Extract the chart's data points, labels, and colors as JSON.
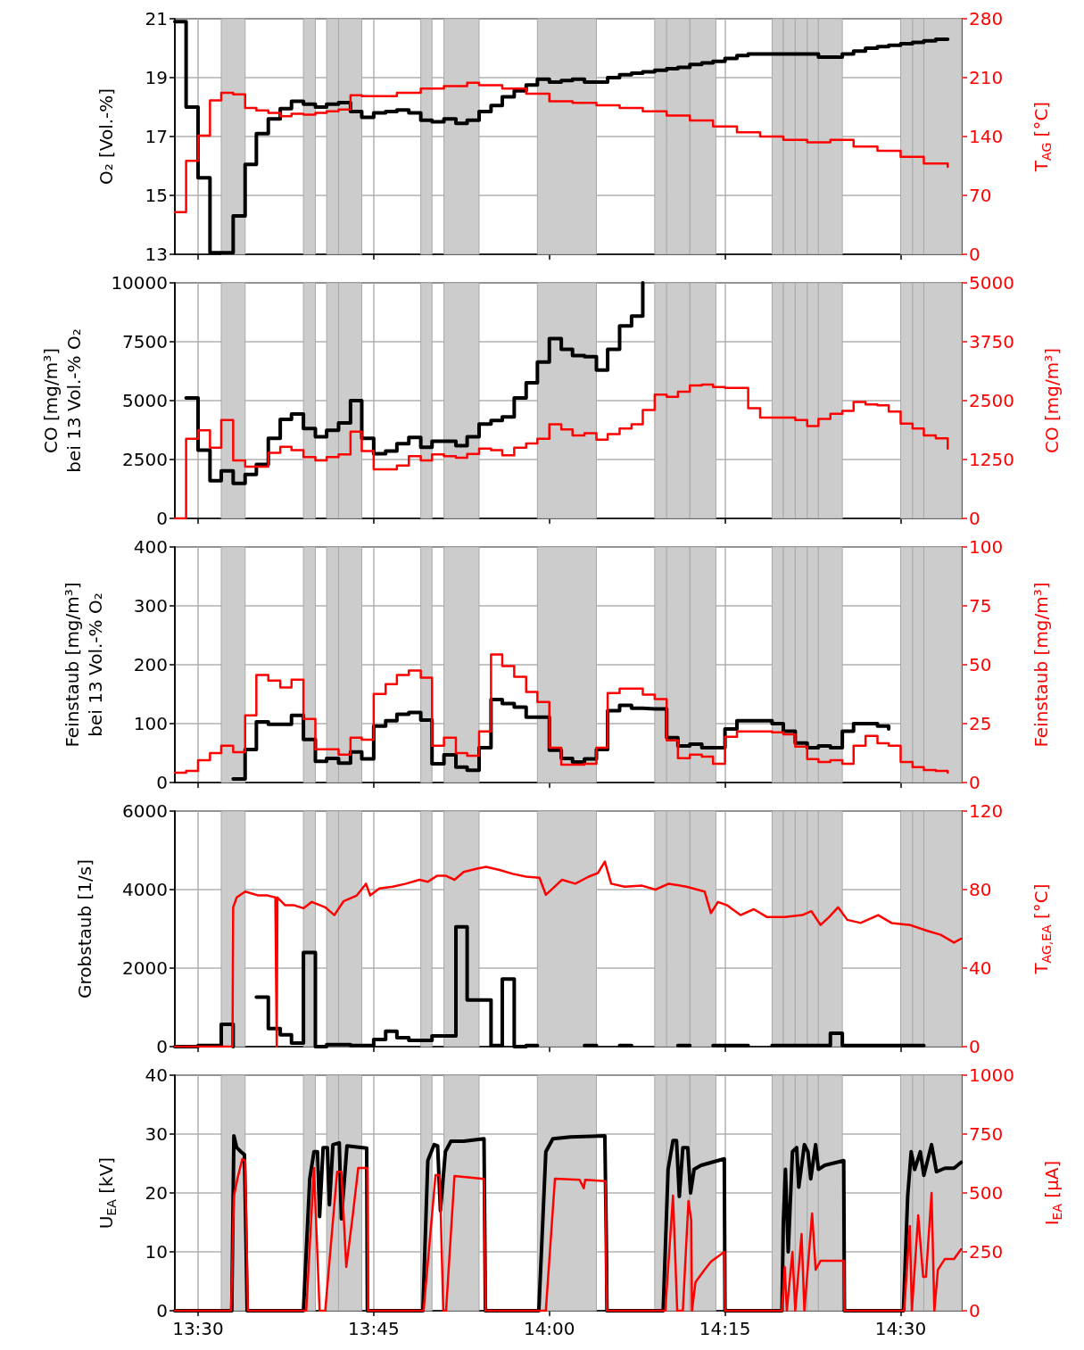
{
  "chart_data": [
    {
      "type": "step",
      "ylabel": "O₂ [Vol.-%]",
      "y2label": "T$_{AG}$ [°C]",
      "x": [
        13.467,
        13.483,
        13.5,
        13.517,
        13.533,
        13.55,
        13.567,
        13.583,
        13.6,
        13.617,
        13.633,
        13.65,
        13.667,
        13.683,
        13.7,
        13.717,
        13.733,
        13.75,
        13.767,
        13.783,
        13.8,
        13.817,
        13.833,
        13.85,
        13.867,
        13.883,
        13.9,
        13.917,
        13.933,
        13.95,
        13.967,
        13.983,
        14,
        14.017,
        14.033,
        14.05,
        14.067,
        14.083,
        14.1,
        14.117,
        14.133,
        14.15,
        14.167,
        14.183,
        14.2,
        14.217,
        14.233,
        14.25,
        14.267,
        14.283,
        14.3,
        14.317,
        14.333,
        14.35,
        14.367,
        14.383,
        14.4,
        14.417,
        14.433,
        14.45,
        14.467,
        14.483,
        14.5,
        14.517,
        14.533,
        14.55,
        14.567
      ],
      "series": [
        {
          "color": "#000000",
          "values": [
            20.9,
            18.0,
            15.6,
            13.05,
            13.05,
            14.3,
            16.05,
            17.1,
            17.6,
            17.95,
            18.2,
            18.1,
            18.0,
            18.1,
            18.15,
            17.85,
            17.65,
            17.8,
            17.85,
            17.9,
            17.8,
            17.55,
            17.5,
            17.6,
            17.45,
            17.55,
            17.85,
            18.05,
            18.35,
            18.55,
            18.75,
            18.95,
            18.85,
            18.9,
            18.95,
            18.85,
            18.85,
            19.0,
            19.1,
            19.15,
            19.2,
            19.25,
            19.3,
            19.35,
            19.45,
            19.5,
            19.55,
            19.65,
            19.75,
            19.8,
            19.8,
            19.8,
            19.8,
            19.8,
            19.8,
            19.7,
            19.7,
            19.8,
            19.9,
            20.0,
            20.05,
            20.1,
            20.15,
            20.2,
            20.25,
            20.3,
            20.3
          ]
        },
        {
          "color": "#ff0000",
          "axis": "y2",
          "values": [
            50,
            111,
            141,
            183,
            192,
            190,
            174,
            171,
            168,
            164,
            167,
            166,
            168,
            170,
            172,
            189,
            188,
            188,
            188,
            192,
            192,
            197,
            197,
            200,
            200,
            204,
            201,
            201,
            197,
            197,
            191,
            191,
            182,
            182,
            180,
            180,
            177,
            177,
            174,
            174,
            170,
            170,
            165,
            165,
            159,
            159,
            152,
            152,
            145,
            145,
            140,
            140,
            136,
            136,
            133,
            133,
            136,
            136,
            128,
            128,
            123,
            123,
            116,
            116,
            108,
            108,
            104
          ]
        }
      ],
      "xlim": [
        13.467,
        14.587
      ],
      "xticks": [
        {
          "value": 13.5,
          "label": null
        },
        {
          "value": 13.75,
          "label": null
        },
        {
          "value": 14,
          "label": null
        },
        {
          "value": 14.25,
          "label": null
        },
        {
          "value": 14.5,
          "label": null
        }
      ],
      "ylim": [
        13,
        21
      ],
      "yticks": [
        13,
        15,
        17,
        19,
        21
      ],
      "y2lim": [
        0,
        280
      ],
      "y2ticks": [
        0,
        70,
        140,
        210,
        280
      ],
      "grid": true,
      "tick_labels": "y",
      "bands": [
        {
          "axis": "x",
          "from": 13.533,
          "to": 13.567,
          "color": "#cccccc"
        },
        {
          "axis": "x",
          "from": 13.65,
          "to": 13.667,
          "color": "#cccccc"
        },
        {
          "axis": "x",
          "from": 13.683,
          "to": 13.7,
          "color": "#cccccc"
        },
        {
          "axis": "x",
          "from": 13.7,
          "to": 13.733,
          "color": "#cccccc"
        },
        {
          "axis": "x",
          "from": 13.817,
          "to": 13.833,
          "color": "#cccccc"
        },
        {
          "axis": "x",
          "from": 13.85,
          "to": 13.9,
          "color": "#cccccc"
        },
        {
          "axis": "x",
          "from": 13.983,
          "to": 14.067,
          "color": "#cccccc"
        },
        {
          "axis": "x",
          "from": 14.15,
          "to": 14.167,
          "color": "#cccccc"
        },
        {
          "axis": "x",
          "from": 14.167,
          "to": 14.2,
          "color": "#cccccc"
        },
        {
          "axis": "x",
          "from": 14.2,
          "to": 14.237,
          "color": "#cccccc"
        },
        {
          "axis": "x",
          "from": 14.317,
          "to": 14.333,
          "color": "#cccccc"
        },
        {
          "axis": "x",
          "from": 14.333,
          "to": 14.35,
          "color": "#cccccc"
        },
        {
          "axis": "x",
          "from": 14.35,
          "to": 14.367,
          "color": "#cccccc"
        },
        {
          "axis": "x",
          "from": 14.367,
          "to": 14.383,
          "color": "#cccccc"
        },
        {
          "axis": "x",
          "from": 14.383,
          "to": 14.417,
          "color": "#cccccc"
        },
        {
          "axis": "x",
          "from": 14.5,
          "to": 14.517,
          "color": "#cccccc"
        },
        {
          "axis": "x",
          "from": 14.517,
          "to": 14.533,
          "color": "#cccccc"
        },
        {
          "axis": "x",
          "from": 14.533,
          "to": 14.587,
          "color": "#cccccc"
        }
      ]
    },
    {
      "type": "step",
      "ylabel": "CO [mg/m³]\nbei 13 Vol.-% O₂",
      "y2label": "CO [mg/m³]",
      "x": [
        13.467,
        13.483,
        13.5,
        13.517,
        13.533,
        13.55,
        13.567,
        13.583,
        13.6,
        13.617,
        13.633,
        13.65,
        13.667,
        13.683,
        13.7,
        13.717,
        13.733,
        13.75,
        13.767,
        13.783,
        13.8,
        13.817,
        13.833,
        13.85,
        13.867,
        13.883,
        13.9,
        13.917,
        13.933,
        13.95,
        13.967,
        13.983,
        14,
        14.017,
        14.033,
        14.05,
        14.067,
        14.083,
        14.1,
        14.117,
        14.133,
        14.15,
        14.167,
        14.183,
        14.2,
        14.217,
        14.233,
        14.25,
        14.267,
        14.283,
        14.3,
        14.317,
        14.333,
        14.35,
        14.367,
        14.383,
        14.4,
        14.417,
        14.433,
        14.45,
        14.467,
        14.483,
        14.5,
        14.517,
        14.533,
        14.55,
        14.567
      ],
      "series": [
        {
          "color": "#000000",
          "values": [
            null,
            5110,
            2900,
            1600,
            2020,
            1490,
            1870,
            2290,
            3400,
            4200,
            4430,
            3820,
            3470,
            3740,
            4050,
            5000,
            3400,
            2750,
            2860,
            3170,
            3440,
            3020,
            3280,
            3280,
            3090,
            3470,
            4010,
            4160,
            4310,
            5110,
            5760,
            6640,
            7630,
            7180,
            6910,
            6870,
            6300,
            7180,
            8170,
            8590,
            10000,
            null,
            null,
            null,
            null,
            null,
            null,
            null,
            null,
            null,
            null,
            null,
            null,
            null,
            null,
            null,
            null,
            null,
            null,
            null,
            null,
            null,
            null,
            null,
            null,
            null,
            null
          ]
        },
        {
          "color": "#ff0000",
          "axis": "y2",
          "values": [
            0,
            1690,
            1870,
            1500,
            2090,
            1230,
            1100,
            1100,
            1390,
            1520,
            1450,
            1300,
            1230,
            1300,
            1360,
            1840,
            1430,
            1040,
            1040,
            1120,
            1320,
            1230,
            1360,
            1320,
            1290,
            1370,
            1480,
            1450,
            1340,
            1500,
            1590,
            1690,
            2000,
            1890,
            1760,
            1810,
            1670,
            1790,
            1910,
            2000,
            2300,
            2630,
            2580,
            2690,
            2820,
            2840,
            2790,
            2770,
            2770,
            2340,
            2140,
            2140,
            2140,
            2090,
            1960,
            2110,
            2220,
            2280,
            2470,
            2420,
            2400,
            2270,
            2010,
            1910,
            1760,
            1700,
            1480
          ]
        }
      ],
      "xlim": [
        13.467,
        14.587
      ],
      "xticks": [
        {
          "value": 13.5,
          "label": null
        },
        {
          "value": 13.75,
          "label": null
        },
        {
          "value": 14,
          "label": null
        },
        {
          "value": 14.25,
          "label": null
        },
        {
          "value": 14.5,
          "label": null
        }
      ],
      "ylim": [
        0,
        10000
      ],
      "yticks": [
        0,
        2500,
        5000,
        7500,
        10000
      ],
      "y2lim": [
        0,
        5000
      ],
      "y2ticks": [
        0,
        1250,
        2500,
        3750,
        5000
      ],
      "grid": true,
      "tick_labels": "y",
      "bands": [
        {
          "axis": "x",
          "from": 13.533,
          "to": 13.567,
          "color": "#cccccc"
        },
        {
          "axis": "x",
          "from": 13.65,
          "to": 13.667,
          "color": "#cccccc"
        },
        {
          "axis": "x",
          "from": 13.683,
          "to": 13.7,
          "color": "#cccccc"
        },
        {
          "axis": "x",
          "from": 13.7,
          "to": 13.733,
          "color": "#cccccc"
        },
        {
          "axis": "x",
          "from": 13.817,
          "to": 13.833,
          "color": "#cccccc"
        },
        {
          "axis": "x",
          "from": 13.85,
          "to": 13.9,
          "color": "#cccccc"
        },
        {
          "axis": "x",
          "from": 13.983,
          "to": 14.067,
          "color": "#cccccc"
        },
        {
          "axis": "x",
          "from": 14.15,
          "to": 14.167,
          "color": "#cccccc"
        },
        {
          "axis": "x",
          "from": 14.167,
          "to": 14.2,
          "color": "#cccccc"
        },
        {
          "axis": "x",
          "from": 14.2,
          "to": 14.237,
          "color": "#cccccc"
        },
        {
          "axis": "x",
          "from": 14.317,
          "to": 14.333,
          "color": "#cccccc"
        },
        {
          "axis": "x",
          "from": 14.333,
          "to": 14.35,
          "color": "#cccccc"
        },
        {
          "axis": "x",
          "from": 14.35,
          "to": 14.367,
          "color": "#cccccc"
        },
        {
          "axis": "x",
          "from": 14.367,
          "to": 14.383,
          "color": "#cccccc"
        },
        {
          "axis": "x",
          "from": 14.383,
          "to": 14.417,
          "color": "#cccccc"
        },
        {
          "axis": "x",
          "from": 14.5,
          "to": 14.517,
          "color": "#cccccc"
        },
        {
          "axis": "x",
          "from": 14.517,
          "to": 14.533,
          "color": "#cccccc"
        },
        {
          "axis": "x",
          "from": 14.533,
          "to": 14.587,
          "color": "#cccccc"
        }
      ]
    },
    {
      "type": "step",
      "ylabel": "Feinstaub [mg/m³]\nbei 13 Vol.-% O₂",
      "y2label": "Feinstaub [mg/m³]",
      "x": [
        13.467,
        13.483,
        13.5,
        13.517,
        13.533,
        13.55,
        13.567,
        13.583,
        13.6,
        13.617,
        13.633,
        13.65,
        13.667,
        13.683,
        13.7,
        13.717,
        13.733,
        13.75,
        13.767,
        13.783,
        13.8,
        13.817,
        13.833,
        13.85,
        13.867,
        13.883,
        13.9,
        13.917,
        13.933,
        13.95,
        13.967,
        13.983,
        14,
        14.017,
        14.033,
        14.05,
        14.067,
        14.083,
        14.1,
        14.117,
        14.133,
        14.15,
        14.167,
        14.183,
        14.2,
        14.217,
        14.233,
        14.25,
        14.267,
        14.283,
        14.3,
        14.317,
        14.333,
        14.35,
        14.367,
        14.383,
        14.4,
        14.417,
        14.433,
        14.45,
        14.467,
        14.483,
        14.5,
        14.517,
        14.533,
        14.55,
        14.567
      ],
      "series": [
        {
          "color": "#000000",
          "values": [
            null,
            null,
            null,
            null,
            null,
            6,
            56,
            103,
            99,
            99,
            114,
            73,
            36,
            41,
            33,
            52,
            40,
            96,
            105,
            116,
            119,
            106,
            32,
            47,
            26,
            21,
            59,
            141,
            134,
            128,
            111,
            111,
            55,
            41,
            35,
            40,
            56,
            122,
            131,
            126,
            125,
            125,
            76,
            62,
            65,
            59,
            59,
            91,
            105,
            105,
            105,
            100,
            87,
            67,
            59,
            62,
            59,
            87,
            100,
            100,
            96,
            91,
            null,
            null,
            null,
            null,
            null
          ]
        },
        {
          "color": "#ff0000",
          "axis": "y2",
          "values": [
            4.2,
            4.9,
            9.5,
            12.5,
            15.6,
            12.9,
            28.5,
            45.6,
            43.3,
            40.3,
            43.7,
            27,
            14.1,
            14.1,
            11.8,
            19,
            18.2,
            37.6,
            41.8,
            45.6,
            47.5,
            44.5,
            15.6,
            19,
            12.5,
            11.4,
            21.7,
            54.4,
            49.4,
            44.9,
            38.4,
            34.2,
            14.8,
            7.6,
            7.6,
            8,
            14.8,
            38,
            39.9,
            39.9,
            37.3,
            35.4,
            17.9,
            10.3,
            11.8,
            11,
            8,
            19.4,
            21.7,
            21.7,
            21.7,
            21.3,
            20.5,
            15.2,
            9.9,
            8.7,
            9.5,
            8,
            15.6,
            19.8,
            16.7,
            15.6,
            8.7,
            6.5,
            5.3,
            4.9,
            4.2
          ]
        }
      ],
      "xlim": [
        13.467,
        14.587
      ],
      "xticks": [
        {
          "value": 13.5,
          "label": null
        },
        {
          "value": 13.75,
          "label": null
        },
        {
          "value": 14,
          "label": null
        },
        {
          "value": 14.25,
          "label": null
        },
        {
          "value": 14.5,
          "label": null
        }
      ],
      "ylim": [
        0,
        400
      ],
      "yticks": [
        0,
        100,
        200,
        300,
        400
      ],
      "y2lim": [
        0,
        100
      ],
      "y2ticks": [
        0,
        25,
        50,
        75,
        100
      ],
      "grid": true,
      "tick_labels": "y",
      "bands": [
        {
          "axis": "x",
          "from": 13.533,
          "to": 13.567,
          "color": "#cccccc"
        },
        {
          "axis": "x",
          "from": 13.65,
          "to": 13.667,
          "color": "#cccccc"
        },
        {
          "axis": "x",
          "from": 13.683,
          "to": 13.7,
          "color": "#cccccc"
        },
        {
          "axis": "x",
          "from": 13.7,
          "to": 13.733,
          "color": "#cccccc"
        },
        {
          "axis": "x",
          "from": 13.817,
          "to": 13.833,
          "color": "#cccccc"
        },
        {
          "axis": "x",
          "from": 13.85,
          "to": 13.9,
          "color": "#cccccc"
        },
        {
          "axis": "x",
          "from": 13.983,
          "to": 14.067,
          "color": "#cccccc"
        },
        {
          "axis": "x",
          "from": 14.15,
          "to": 14.167,
          "color": "#cccccc"
        },
        {
          "axis": "x",
          "from": 14.167,
          "to": 14.2,
          "color": "#cccccc"
        },
        {
          "axis": "x",
          "from": 14.2,
          "to": 14.237,
          "color": "#cccccc"
        },
        {
          "axis": "x",
          "from": 14.317,
          "to": 14.333,
          "color": "#cccccc"
        },
        {
          "axis": "x",
          "from": 14.333,
          "to": 14.35,
          "color": "#cccccc"
        },
        {
          "axis": "x",
          "from": 14.35,
          "to": 14.367,
          "color": "#cccccc"
        },
        {
          "axis": "x",
          "from": 14.367,
          "to": 14.383,
          "color": "#cccccc"
        },
        {
          "axis": "x",
          "from": 14.383,
          "to": 14.417,
          "color": "#cccccc"
        },
        {
          "axis": "x",
          "from": 14.5,
          "to": 14.517,
          "color": "#cccccc"
        },
        {
          "axis": "x",
          "from": 14.517,
          "to": 14.533,
          "color": "#cccccc"
        },
        {
          "axis": "x",
          "from": 14.533,
          "to": 14.587,
          "color": "#cccccc"
        }
      ]
    },
    {
      "type": "step",
      "ylabel": "Grobstaub [1/s]",
      "y2label": "T$_{AG,EA}$ [°C]",
      "x": [
        13.467,
        13.483,
        13.5,
        13.517,
        13.533,
        13.55,
        13.567,
        13.583,
        13.6,
        13.617,
        13.633,
        13.65,
        13.667,
        13.683,
        13.7,
        13.717,
        13.733,
        13.75,
        13.767,
        13.783,
        13.8,
        13.817,
        13.833,
        13.85,
        13.867,
        13.883,
        13.9,
        13.917,
        13.933,
        13.95,
        13.967,
        13.983,
        14,
        14.017,
        14.033,
        14.05,
        14.067,
        14.083,
        14.1,
        14.117,
        14.133,
        14.15,
        14.167,
        14.183,
        14.2,
        14.217,
        14.233,
        14.25,
        14.267,
        14.283,
        14.3,
        14.317,
        14.333,
        14.35,
        14.367,
        14.383,
        14.4,
        14.417,
        14.433,
        14.45,
        14.467,
        14.483,
        14.5,
        14.517,
        14.533
      ],
      "series": [
        {
          "color": "#000000",
          "values": [
            0,
            0,
            30,
            30,
            570,
            0,
            null,
            1260,
            460,
            300,
            90,
            2400,
            0,
            50,
            50,
            30,
            30,
            180,
            390,
            230,
            160,
            160,
            270,
            270,
            3050,
            1190,
            1190,
            30,
            1720,
            0,
            30,
            30,
            null,
            null,
            null,
            30,
            30,
            null,
            30,
            30,
            null,
            null,
            null,
            30,
            30,
            null,
            30,
            30,
            30,
            30,
            null,
            30,
            30,
            30,
            30,
            30,
            340,
            30,
            30,
            30,
            30,
            30,
            30,
            30,
            30
          ]
        },
        {
          "color": "#ff0000",
          "axis": "y2",
          "type": "line",
          "x": [
            13.467,
            13.549,
            13.55,
            13.555,
            13.567,
            13.586,
            13.599,
            13.61,
            13.612,
            13.613,
            13.624,
            13.637,
            13.65,
            13.662,
            13.681,
            13.694,
            13.707,
            13.726,
            13.739,
            13.745,
            13.758,
            13.777,
            13.796,
            13.815,
            13.827,
            13.84,
            13.853,
            13.865,
            13.878,
            13.897,
            13.91,
            13.929,
            13.948,
            13.967,
            13.986,
            13.995,
            14.005,
            14.018,
            14.037,
            14.056,
            14.069,
            14.079,
            14.088,
            14.107,
            14.132,
            14.151,
            14.17,
            14.195,
            14.221,
            14.23,
            14.24,
            14.253,
            14.272,
            14.291,
            14.31,
            14.335,
            14.36,
            14.373,
            14.386,
            14.398,
            14.411,
            14.424,
            14.443,
            14.468,
            14.487,
            14.513,
            14.538,
            14.557,
            14.576,
            14.586
          ],
          "values": [
            0,
            0,
            71,
            76,
            79,
            77,
            77,
            76,
            0,
            76,
            72,
            72,
            70.5,
            73.7,
            71,
            67,
            74,
            77,
            83,
            77,
            80.6,
            81.5,
            83,
            85,
            84,
            87,
            87,
            85,
            89,
            90.7,
            91.6,
            90,
            88,
            86.6,
            86,
            77.4,
            80.6,
            85,
            83,
            86.6,
            88.4,
            94.3,
            83,
            81.5,
            82,
            80,
            83,
            81.5,
            79,
            68,
            73.7,
            72,
            67,
            70,
            66,
            66,
            67,
            69,
            62,
            66,
            71,
            64.6,
            63,
            67,
            63,
            62,
            59,
            57,
            53,
            55
          ]
        }
      ],
      "xlim": [
        13.467,
        14.587
      ],
      "xticks": [
        {
          "value": 13.5,
          "label": null
        },
        {
          "value": 13.75,
          "label": null
        },
        {
          "value": 14,
          "label": null
        },
        {
          "value": 14.25,
          "label": null
        },
        {
          "value": 14.5,
          "label": null
        }
      ],
      "ylim": [
        0,
        6000
      ],
      "yticks": [
        0,
        2000,
        4000,
        6000
      ],
      "y2lim": [
        0,
        120
      ],
      "y2ticks": [
        0,
        40,
        80,
        120
      ],
      "grid": true,
      "tick_labels": "y",
      "bands": [
        {
          "axis": "x",
          "from": 13.533,
          "to": 13.567,
          "color": "#cccccc"
        },
        {
          "axis": "x",
          "from": 13.65,
          "to": 13.667,
          "color": "#cccccc"
        },
        {
          "axis": "x",
          "from": 13.683,
          "to": 13.7,
          "color": "#cccccc"
        },
        {
          "axis": "x",
          "from": 13.7,
          "to": 13.733,
          "color": "#cccccc"
        },
        {
          "axis": "x",
          "from": 13.817,
          "to": 13.833,
          "color": "#cccccc"
        },
        {
          "axis": "x",
          "from": 13.85,
          "to": 13.9,
          "color": "#cccccc"
        },
        {
          "axis": "x",
          "from": 13.983,
          "to": 14.067,
          "color": "#cccccc"
        },
        {
          "axis": "x",
          "from": 14.15,
          "to": 14.167,
          "color": "#cccccc"
        },
        {
          "axis": "x",
          "from": 14.167,
          "to": 14.2,
          "color": "#cccccc"
        },
        {
          "axis": "x",
          "from": 14.2,
          "to": 14.237,
          "color": "#cccccc"
        },
        {
          "axis": "x",
          "from": 14.317,
          "to": 14.333,
          "color": "#cccccc"
        },
        {
          "axis": "x",
          "from": 14.333,
          "to": 14.35,
          "color": "#cccccc"
        },
        {
          "axis": "x",
          "from": 14.35,
          "to": 14.367,
          "color": "#cccccc"
        },
        {
          "axis": "x",
          "from": 14.367,
          "to": 14.383,
          "color": "#cccccc"
        },
        {
          "axis": "x",
          "from": 14.383,
          "to": 14.417,
          "color": "#cccccc"
        },
        {
          "axis": "x",
          "from": 14.5,
          "to": 14.517,
          "color": "#cccccc"
        },
        {
          "axis": "x",
          "from": 14.517,
          "to": 14.533,
          "color": "#cccccc"
        },
        {
          "axis": "x",
          "from": 14.533,
          "to": 14.587,
          "color": "#cccccc"
        }
      ]
    },
    {
      "type": "line",
      "ylabel": "U$_{EA}$ [kV]",
      "y2label": "I$_{EA}$ [µA]",
      "series": [
        {
          "color": "#000000",
          "x": [
            13.467,
            13.548,
            13.551,
            13.555,
            13.561,
            13.566,
            13.57,
            13.65,
            13.659,
            13.665,
            13.67,
            13.673,
            13.678,
            13.684,
            13.687,
            13.692,
            13.701,
            13.704,
            13.712,
            13.74,
            13.741,
            13.82,
            13.827,
            13.836,
            13.841,
            13.845,
            13.852,
            13.86,
            13.878,
            13.907,
            13.909,
            13.985,
            13.995,
            14.005,
            14.03,
            14.079,
            14.081,
            14.082,
            14.162,
            14.169,
            14.176,
            14.181,
            14.185,
            14.19,
            14.197,
            14.201,
            14.206,
            14.216,
            14.249,
            14.25,
            14.331,
            14.333,
            14.336,
            14.34,
            14.346,
            14.352,
            14.355,
            14.363,
            14.368,
            14.372,
            14.379,
            14.383,
            14.392,
            14.419,
            14.42,
            14.504,
            14.51,
            14.515,
            14.52,
            14.528,
            14.533,
            14.544,
            14.551,
            14.563,
            14.576,
            14.586
          ],
          "values": [
            0,
            0,
            29.7,
            27.7,
            27,
            26.5,
            0,
            0,
            22.4,
            27,
            27,
            16,
            27.7,
            27.7,
            18,
            28.2,
            28.5,
            15.6,
            28,
            27.6,
            0,
            0,
            25.5,
            28.2,
            28,
            17,
            27,
            28.8,
            28.8,
            29.2,
            0,
            0,
            27,
            29.2,
            29.5,
            29.7,
            13,
            0,
            0,
            24,
            28.9,
            28.9,
            19.4,
            27.7,
            27.7,
            20,
            24,
            24.7,
            25.8,
            0,
            0,
            14.8,
            24,
            10,
            27,
            27.7,
            21,
            28.2,
            27,
            22.4,
            28.2,
            24,
            24.7,
            25.5,
            0,
            0,
            19.4,
            27,
            24,
            27,
            23,
            28.2,
            23.6,
            24.2,
            24.2,
            25.2
          ]
        },
        {
          "color": "#ff0000",
          "axis": "y2",
          "x": [
            13.467,
            13.547,
            13.551,
            13.556,
            13.563,
            13.567,
            13.571,
            13.654,
            13.665,
            13.673,
            13.681,
            13.698,
            13.704,
            13.711,
            13.72,
            13.728,
            13.741,
            13.742,
            13.821,
            13.838,
            13.844,
            13.849,
            13.853,
            13.865,
            13.907,
            13.909,
            13.995,
            14.008,
            14.043,
            14.049,
            14.051,
            14.08,
            14.081,
            14.082,
            14.165,
            14.176,
            14.182,
            14.19,
            14.198,
            14.202,
            14.203,
            14.208,
            14.221,
            14.23,
            14.249,
            14.25,
            14.331,
            14.335,
            14.338,
            14.346,
            14.35,
            14.359,
            14.363,
            14.374,
            14.379,
            14.386,
            14.419,
            14.42,
            14.505,
            14.513,
            14.516,
            14.525,
            14.532,
            14.536,
            14.544,
            14.548,
            14.553,
            14.563,
            14.576,
            14.586
          ],
          "values": [
            0,
            0,
            485,
            560,
            644,
            637,
            0,
            0,
            606,
            0,
            0,
            590,
            590,
            186,
            400,
            606,
            606,
            0,
            0,
            576,
            576,
            0,
            0,
            572,
            560,
            0,
            0,
            561,
            556,
            520,
            556,
            550,
            120,
            0,
            0,
            489,
            0,
            0,
            466,
            383,
            0,
            121,
            174,
            208,
            250,
            0,
            0,
            186,
            0,
            250,
            0,
            326,
            0,
            413,
            174,
            212,
            212,
            0,
            0,
            360,
            0,
            405,
            144,
            144,
            500,
            0,
            174,
            220,
            220,
            261
          ]
        }
      ],
      "xlim": [
        13.467,
        14.587
      ],
      "xticks": [
        {
          "value": 13.5,
          "label": "13:30"
        },
        {
          "value": 13.75,
          "label": "13:45"
        },
        {
          "value": 14,
          "label": "14:00"
        },
        {
          "value": 14.25,
          "label": "14:15"
        },
        {
          "value": 14.5,
          "label": "14:30"
        }
      ],
      "ylim": [
        0,
        40
      ],
      "yticks": [
        0,
        10,
        20,
        30,
        40
      ],
      "y2lim": [
        0,
        1000
      ],
      "y2ticks": [
        0,
        250,
        500,
        750,
        1000
      ],
      "grid": true,
      "bands": [
        {
          "axis": "x",
          "from": 13.533,
          "to": 13.567,
          "color": "#cccccc"
        },
        {
          "axis": "x",
          "from": 13.65,
          "to": 13.667,
          "color": "#cccccc"
        },
        {
          "axis": "x",
          "from": 13.683,
          "to": 13.7,
          "color": "#cccccc"
        },
        {
          "axis": "x",
          "from": 13.7,
          "to": 13.733,
          "color": "#cccccc"
        },
        {
          "axis": "x",
          "from": 13.817,
          "to": 13.833,
          "color": "#cccccc"
        },
        {
          "axis": "x",
          "from": 13.85,
          "to": 13.9,
          "color": "#cccccc"
        },
        {
          "axis": "x",
          "from": 13.983,
          "to": 14.067,
          "color": "#cccccc"
        },
        {
          "axis": "x",
          "from": 14.15,
          "to": 14.167,
          "color": "#cccccc"
        },
        {
          "axis": "x",
          "from": 14.167,
          "to": 14.2,
          "color": "#cccccc"
        },
        {
          "axis": "x",
          "from": 14.2,
          "to": 14.237,
          "color": "#cccccc"
        },
        {
          "axis": "x",
          "from": 14.317,
          "to": 14.333,
          "color": "#cccccc"
        },
        {
          "axis": "x",
          "from": 14.333,
          "to": 14.35,
          "color": "#cccccc"
        },
        {
          "axis": "x",
          "from": 14.35,
          "to": 14.367,
          "color": "#cccccc"
        },
        {
          "axis": "x",
          "from": 14.367,
          "to": 14.383,
          "color": "#cccccc"
        },
        {
          "axis": "x",
          "from": 14.383,
          "to": 14.417,
          "color": "#cccccc"
        },
        {
          "axis": "x",
          "from": 14.5,
          "to": 14.517,
          "color": "#cccccc"
        },
        {
          "axis": "x",
          "from": 14.517,
          "to": 14.533,
          "color": "#cccccc"
        },
        {
          "axis": "x",
          "from": 14.533,
          "to": 14.587,
          "color": "#cccccc"
        }
      ]
    }
  ]
}
